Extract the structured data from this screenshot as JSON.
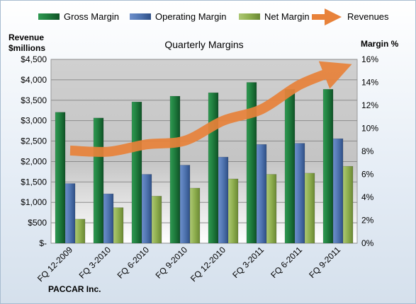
{
  "chart_data": {
    "type": "bar",
    "title": "Quarterly Margins",
    "source_label": "PACCAR Inc.",
    "ylabel_left": [
      "Revenue",
      "$millions"
    ],
    "ylabel_right": "Margin %",
    "categories": [
      "FQ 12-2009",
      "FQ 3-2010",
      "FQ 6-2010",
      "FQ 9-2010",
      "FQ 12-2010",
      "FQ 3-2011",
      "FQ 6-2011",
      "FQ 9-2011"
    ],
    "left_axis": {
      "ylim": [
        0,
        4500
      ],
      "ticks": [
        "$-",
        "$500",
        "$1,000",
        "$1,500",
        "$2,000",
        "$2,500",
        "$3,000",
        "$3,500",
        "$4,000",
        "$4,500"
      ]
    },
    "right_axis": {
      "ylim": [
        0,
        16
      ],
      "ticks": [
        "0%",
        "2%",
        "4%",
        "6%",
        "8%",
        "10%",
        "12%",
        "14%",
        "16%"
      ]
    },
    "series": [
      {
        "name": "Gross Margin",
        "axis": "right",
        "type": "bar",
        "color": "#1e7a3c",
        "values": [
          11.4,
          10.9,
          12.3,
          12.8,
          13.1,
          14.0,
          13.4,
          13.4
        ]
      },
      {
        "name": "Operating Margin",
        "axis": "right",
        "type": "bar",
        "color": "#4f74b0",
        "values": [
          5.2,
          4.3,
          6.0,
          6.8,
          7.5,
          8.6,
          8.7,
          9.1
        ]
      },
      {
        "name": "Net Margin",
        "axis": "right",
        "type": "bar",
        "color": "#8eae4e",
        "values": [
          2.1,
          3.1,
          4.1,
          4.8,
          5.6,
          6.0,
          6.1,
          6.7
        ]
      },
      {
        "name": "Revenues",
        "axis": "left",
        "type": "line",
        "color": "#e8823a",
        "values": [
          2270,
          2240,
          2420,
          2510,
          3000,
          3280,
          3880,
          4250
        ]
      }
    ],
    "grid": true,
    "legend": "top"
  }
}
